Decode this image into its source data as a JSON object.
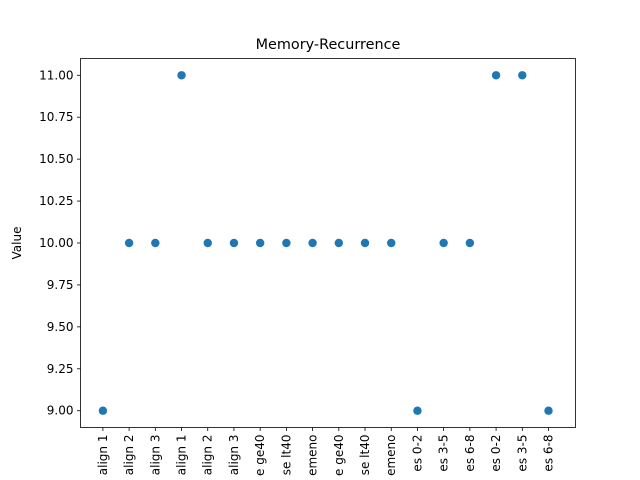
{
  "chart_data": {
    "type": "scatter",
    "title": "Memory-Recurrence",
    "xlabel": "",
    "ylabel": "Value",
    "categories": [
      "align 1",
      "align 2",
      "align 3",
      "align 1",
      "align 2",
      "align 3",
      "e ge40",
      "se lt40",
      "emeno",
      "e ge40",
      "se lt40",
      "emeno",
      "es 0-2",
      "es 3-5",
      "es 6-8",
      "es 0-2",
      "es 3-5",
      "es 6-8"
    ],
    "values": [
      9,
      10,
      10,
      11,
      10,
      10,
      10,
      10,
      10,
      10,
      10,
      10,
      9,
      10,
      10,
      11,
      11,
      9
    ],
    "ylim": [
      8.9,
      11.1
    ],
    "yticks": [
      "9.00",
      "9.25",
      "9.50",
      "9.75",
      "10.00",
      "10.25",
      "10.50",
      "10.75",
      "11.00"
    ],
    "grid": false,
    "colors": {
      "marker": "#1f77b4"
    }
  }
}
